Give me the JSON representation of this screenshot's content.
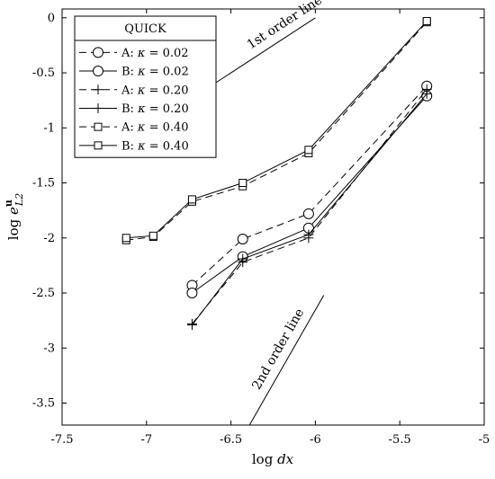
{
  "chart_data": {
    "type": "line",
    "title": "",
    "xlabel": "log dx",
    "ylabel": "log e^u_L2",
    "xlim": [
      -7.5,
      -5
    ],
    "ylim": [
      -3.7,
      0.08
    ],
    "x_ticks": [
      -7.5,
      -7,
      -6.5,
      -6,
      -5.5,
      -5
    ],
    "x_tick_labels": [
      "-7.5",
      "-7",
      "-6.5",
      "-6",
      "-5.5",
      "-5"
    ],
    "y_ticks": [
      0,
      -0.5,
      -1,
      -1.5,
      -2,
      -2.5,
      -3,
      -3.5
    ],
    "y_tick_labels": [
      "0",
      "-0.5",
      "-1",
      "-1.5",
      "-2",
      "-2.5",
      "-3",
      "-3.5"
    ],
    "grid": false,
    "legend": {
      "title": "QUICK",
      "placement": "top-left",
      "entries": [
        "A: κ = 0.02",
        "B: κ = 0.02",
        "A: κ = 0.20",
        "B: κ = 0.20",
        "A: κ = 0.40",
        "B: κ = 0.40"
      ]
    },
    "series": [
      {
        "name": "A: κ = 0.02",
        "dash": "dashed",
        "marker": "circle",
        "x": [
          -6.73,
          -6.43,
          -6.04,
          -5.34
        ],
        "y": [
          -2.43,
          -2.01,
          -1.78,
          -0.62
        ]
      },
      {
        "name": "B: κ = 0.02",
        "dash": "solid",
        "marker": "circle",
        "x": [
          -6.73,
          -6.43,
          -6.04,
          -5.34
        ],
        "y": [
          -2.5,
          -2.17,
          -1.91,
          -0.71
        ]
      },
      {
        "name": "A: κ = 0.20",
        "dash": "dashed",
        "marker": "plus",
        "x": [
          -6.73,
          -6.43,
          -6.04,
          -5.34
        ],
        "y": [
          -2.78,
          -2.22,
          -2.0,
          -0.65
        ]
      },
      {
        "name": "B: κ = 0.20",
        "dash": "solid",
        "marker": "plus",
        "x": [
          -6.73,
          -6.43,
          -6.04,
          -5.34
        ],
        "y": [
          -2.79,
          -2.19,
          -1.97,
          -0.69
        ]
      },
      {
        "name": "A: κ = 0.40",
        "dash": "dashed",
        "marker": "square",
        "x": [
          -7.12,
          -6.96,
          -6.73,
          -6.43,
          -6.04,
          -5.34
        ],
        "y": [
          -2.02,
          -1.99,
          -1.67,
          -1.53,
          -1.23,
          -0.04
        ]
      },
      {
        "name": "B: κ = 0.40",
        "dash": "solid",
        "marker": "square",
        "x": [
          -7.12,
          -6.96,
          -6.73,
          -6.43,
          -6.04,
          -5.34
        ],
        "y": [
          -2.0,
          -1.98,
          -1.65,
          -1.5,
          -1.2,
          -0.03
        ]
      }
    ],
    "reference_lines": [
      {
        "label": "1st order line",
        "x": [
          -6.62,
          -6.0
        ],
        "y": [
          -0.62,
          0.0
        ]
      },
      {
        "label": "2nd order line",
        "x": [
          -6.39,
          -5.95
        ],
        "y": [
          -3.7,
          -2.52
        ]
      }
    ]
  }
}
